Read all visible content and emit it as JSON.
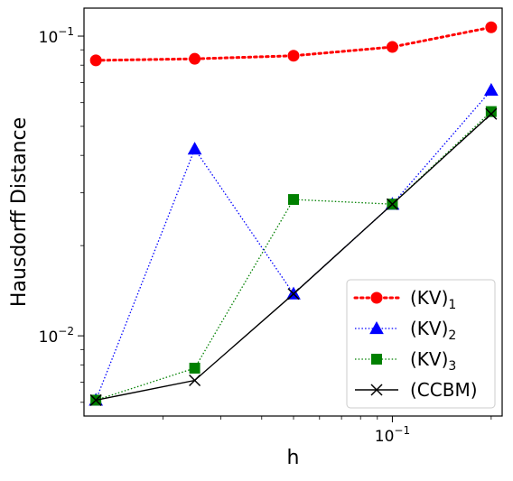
{
  "chart_data": {
    "type": "line",
    "title": "",
    "xlabel": "h",
    "ylabel": "Hausdorff Distance",
    "xscale": "log",
    "yscale": "log",
    "xlim": [
      0.0115,
      0.216
    ],
    "ylim": [
      0.0054,
      0.124
    ],
    "x_ticks": [
      {
        "value": 0.1,
        "base": "10",
        "exponent": "−1"
      }
    ],
    "y_ticks": [
      {
        "value": 0.01,
        "base": "10",
        "exponent": "−2"
      },
      {
        "value": 0.1,
        "base": "10",
        "exponent": "−1"
      }
    ],
    "grid": false,
    "legend_position": "lower-right",
    "x": [
      0.0125,
      0.025,
      0.05,
      0.1,
      0.2
    ],
    "series": [
      {
        "name": "(KV)",
        "subscript": "1",
        "color": "#ff0000",
        "marker": "circle",
        "line_style": "dotted-thick",
        "values": [
          0.083,
          0.084,
          0.086,
          0.092,
          0.107
        ]
      },
      {
        "name": "(KV)",
        "subscript": "2",
        "color": "#0000ff",
        "marker": "triangle",
        "line_style": "dotted",
        "values": [
          0.0061,
          0.042,
          0.0138,
          0.0275,
          0.066
        ]
      },
      {
        "name": "(KV)",
        "subscript": "3",
        "color": "#008000",
        "marker": "square",
        "line_style": "dotted",
        "values": [
          0.0061,
          0.0078,
          0.0285,
          0.0275,
          0.056
        ]
      },
      {
        "name": "(CCBM)",
        "subscript": "",
        "color": "#000000",
        "marker": "x",
        "line_style": "solid",
        "values": [
          0.0061,
          0.0071,
          0.0138,
          0.0275,
          0.055
        ]
      }
    ]
  }
}
